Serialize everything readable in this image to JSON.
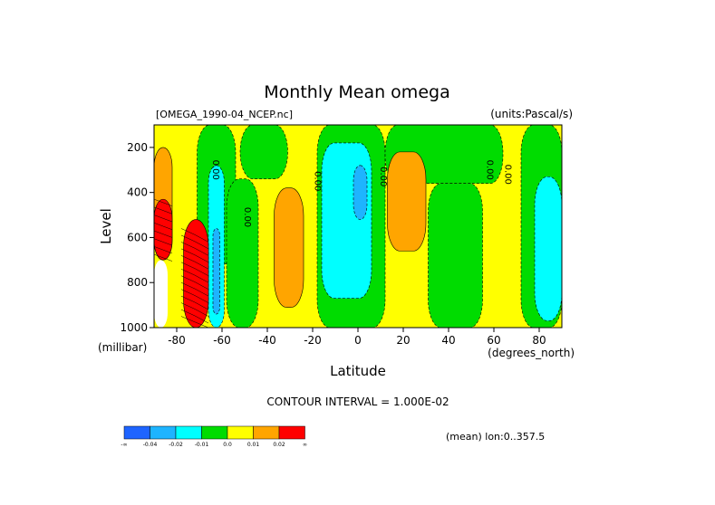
{
  "chart_data": {
    "type": "contour",
    "title": "Monthly Mean omega",
    "subtitle_left": "[OMEGA_1990-04_NCEP.nc]",
    "subtitle_right": "(units:Pascal/s)",
    "xlabel": "Latitude",
    "x_unit_label": "(degrees_north)",
    "ylabel": "Level",
    "y_unit_label": "(millibar)",
    "xlim": [
      -90,
      90
    ],
    "ylim": [
      1000,
      100
    ],
    "xticks": [
      -80,
      -60,
      -40,
      -20,
      0,
      20,
      40,
      60,
      80
    ],
    "yticks": [
      200,
      400,
      600,
      800,
      1000
    ],
    "contour_interval_text": "CONTOUR INTERVAL = 1.000E-02",
    "contour_label": "0.00",
    "mean_note": "(mean) lon:0..357.5",
    "colorbar": {
      "colors": [
        "#1e64ff",
        "#1eb4ff",
        "#00ffff",
        "#00dc00",
        "#ffff00",
        "#ffa500",
        "#ff0000"
      ],
      "labels": [
        "-∞",
        "-0.04",
        "-0.02",
        "-0.01",
        "0.0",
        "0.01",
        "0.02",
        "∞"
      ]
    },
    "regions": [
      {
        "value": "0.0",
        "color": "#ffff00",
        "lat": [
          -90,
          90
        ],
        "lev": [
          100,
          1000
        ]
      },
      {
        "value": "-0.01",
        "color": "#00dc00",
        "lat": [
          -71,
          -54
        ],
        "lev": [
          100,
          720
        ]
      },
      {
        "value": "-0.01",
        "color": "#00dc00",
        "lat": [
          -52,
          -31
        ],
        "lev": [
          100,
          340
        ]
      },
      {
        "value": "-0.01",
        "color": "#00dc00",
        "lat": [
          -58,
          -44
        ],
        "lev": [
          340,
          1000
        ]
      },
      {
        "value": "-0.01",
        "color": "#00dc00",
        "lat": [
          -18,
          12
        ],
        "lev": [
          100,
          1000
        ]
      },
      {
        "value": "-0.01",
        "color": "#00dc00",
        "lat": [
          12,
          64
        ],
        "lev": [
          100,
          360
        ]
      },
      {
        "value": "-0.01",
        "color": "#00dc00",
        "lat": [
          31,
          55
        ],
        "lev": [
          360,
          1000
        ]
      },
      {
        "value": "-0.01",
        "color": "#00dc00",
        "lat": [
          72,
          90
        ],
        "lev": [
          100,
          1000
        ]
      },
      {
        "value": "-0.02",
        "color": "#00ffff",
        "lat": [
          -66,
          -59
        ],
        "lev": [
          280,
          1000
        ]
      },
      {
        "value": "-0.02",
        "color": "#00ffff",
        "lat": [
          -16,
          6
        ],
        "lev": [
          180,
          870
        ]
      },
      {
        "value": "-0.02",
        "color": "#00ffff",
        "lat": [
          78,
          90
        ],
        "lev": [
          330,
          970
        ]
      },
      {
        "value": "-0.04",
        "color": "#1eb4ff",
        "lat": [
          -64,
          -61
        ],
        "lev": [
          560,
          940
        ]
      },
      {
        "value": "-0.04",
        "color": "#1eb4ff",
        "lat": [
          -2,
          4
        ],
        "lev": [
          280,
          520
        ]
      },
      {
        "value": "0.01",
        "color": "#ffa500",
        "lat": [
          -37,
          -24
        ],
        "lev": [
          380,
          910
        ]
      },
      {
        "value": "0.01",
        "color": "#ffa500",
        "lat": [
          13,
          30
        ],
        "lev": [
          220,
          660
        ]
      },
      {
        "value": "0.01",
        "color": "#ffa500",
        "lat": [
          -90,
          -82
        ],
        "lev": [
          200,
          700
        ]
      },
      {
        "value": "0.02",
        "color": "#ff0000",
        "lat": [
          -90,
          -82
        ],
        "lev": [
          430,
          700
        ]
      },
      {
        "value": "0.02",
        "color": "#ff0000",
        "lat": [
          -77,
          -66
        ],
        "lev": [
          520,
          1000
        ]
      },
      {
        "value": "missing",
        "color": "#ffffff",
        "lat": [
          -90,
          -84
        ],
        "lev": [
          700,
          1000
        ]
      }
    ]
  }
}
